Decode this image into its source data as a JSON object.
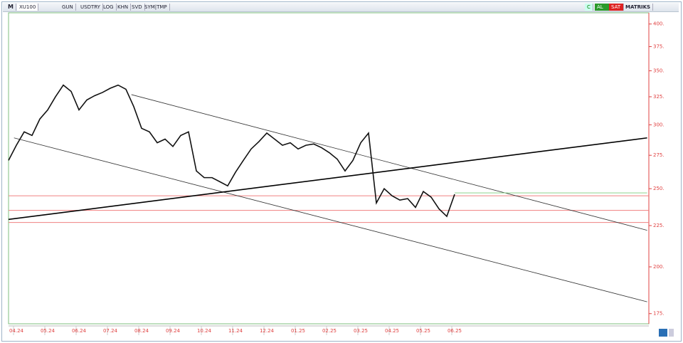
{
  "toolbar": {
    "menu": "M",
    "symbol": "XU100",
    "buttons": [
      "GUN",
      "USDTRY",
      "LOG",
      "KHN",
      "SVD",
      "SYM|TMP"
    ],
    "c": "C",
    "buy": "AL",
    "sell": "SAT",
    "brand": "MATRIKS"
  },
  "chart_data": {
    "type": "line",
    "log_scale": true,
    "color": "#111111",
    "categories": [
      null,
      "04.24",
      null,
      null,
      null,
      "05.24",
      null,
      null,
      null,
      "06.24",
      null,
      null,
      null,
      "07.24",
      null,
      null,
      null,
      "08.24",
      null,
      null,
      null,
      "09.24",
      null,
      null,
      null,
      "10.24",
      null,
      null,
      null,
      "11.24",
      null,
      null,
      null,
      "12.24",
      null,
      null,
      null,
      "01.25",
      null,
      null,
      null,
      "02.25",
      null,
      null,
      null,
      "03.25",
      null,
      null,
      null,
      "04.25",
      null,
      null,
      null,
      "05.25",
      null,
      null,
      null,
      "06.25"
    ],
    "values": [
      271,
      283,
      294,
      291,
      305,
      313,
      325,
      336,
      330,
      313,
      322,
      326,
      329,
      333,
      336,
      332,
      316,
      297,
      294,
      285,
      288,
      282,
      291,
      294,
      263,
      258,
      258,
      255,
      252,
      262,
      271,
      280,
      286,
      293,
      288,
      283,
      285,
      280,
      283,
      284,
      281,
      277,
      272,
      263,
      271,
      285,
      293,
      240,
      250,
      245,
      242,
      243,
      237,
      248,
      244,
      236,
      231,
      246
    ],
    "ylim": [
      170,
      413
    ],
    "yticks": [
      {
        "value": 175,
        "label": "175."
      },
      {
        "value": 200,
        "label": "200."
      },
      {
        "value": 225,
        "label": "225."
      },
      {
        "value": 250,
        "label": "250."
      },
      {
        "value": 275,
        "label": "275."
      },
      {
        "value": 300,
        "label": "300."
      },
      {
        "value": 325,
        "label": "325."
      },
      {
        "value": 350,
        "label": "350."
      },
      {
        "value": 375,
        "label": "375."
      },
      {
        "value": 400,
        "label": "400."
      }
    ],
    "hlines": [
      {
        "value": 245,
        "color": "#f08080"
      },
      {
        "value": 235,
        "color": "#f08080"
      },
      {
        "value": 227,
        "color": "#f08080"
      }
    ],
    "trendlines": [
      {
        "x": [
          15.7,
          81.6
        ],
        "y": [
          327,
          222
        ],
        "color": "#333333"
      },
      {
        "x": [
          0.7,
          81.6
        ],
        "y": [
          289,
          181
        ],
        "color": "#333333"
      },
      {
        "x": [
          0,
          81.6
        ],
        "y": [
          229,
          289
        ],
        "color": "#000000"
      },
      {
        "x": [
          57,
          81.6
        ],
        "y": [
          247,
          247
        ],
        "color": "#7ccf7c"
      }
    ]
  }
}
